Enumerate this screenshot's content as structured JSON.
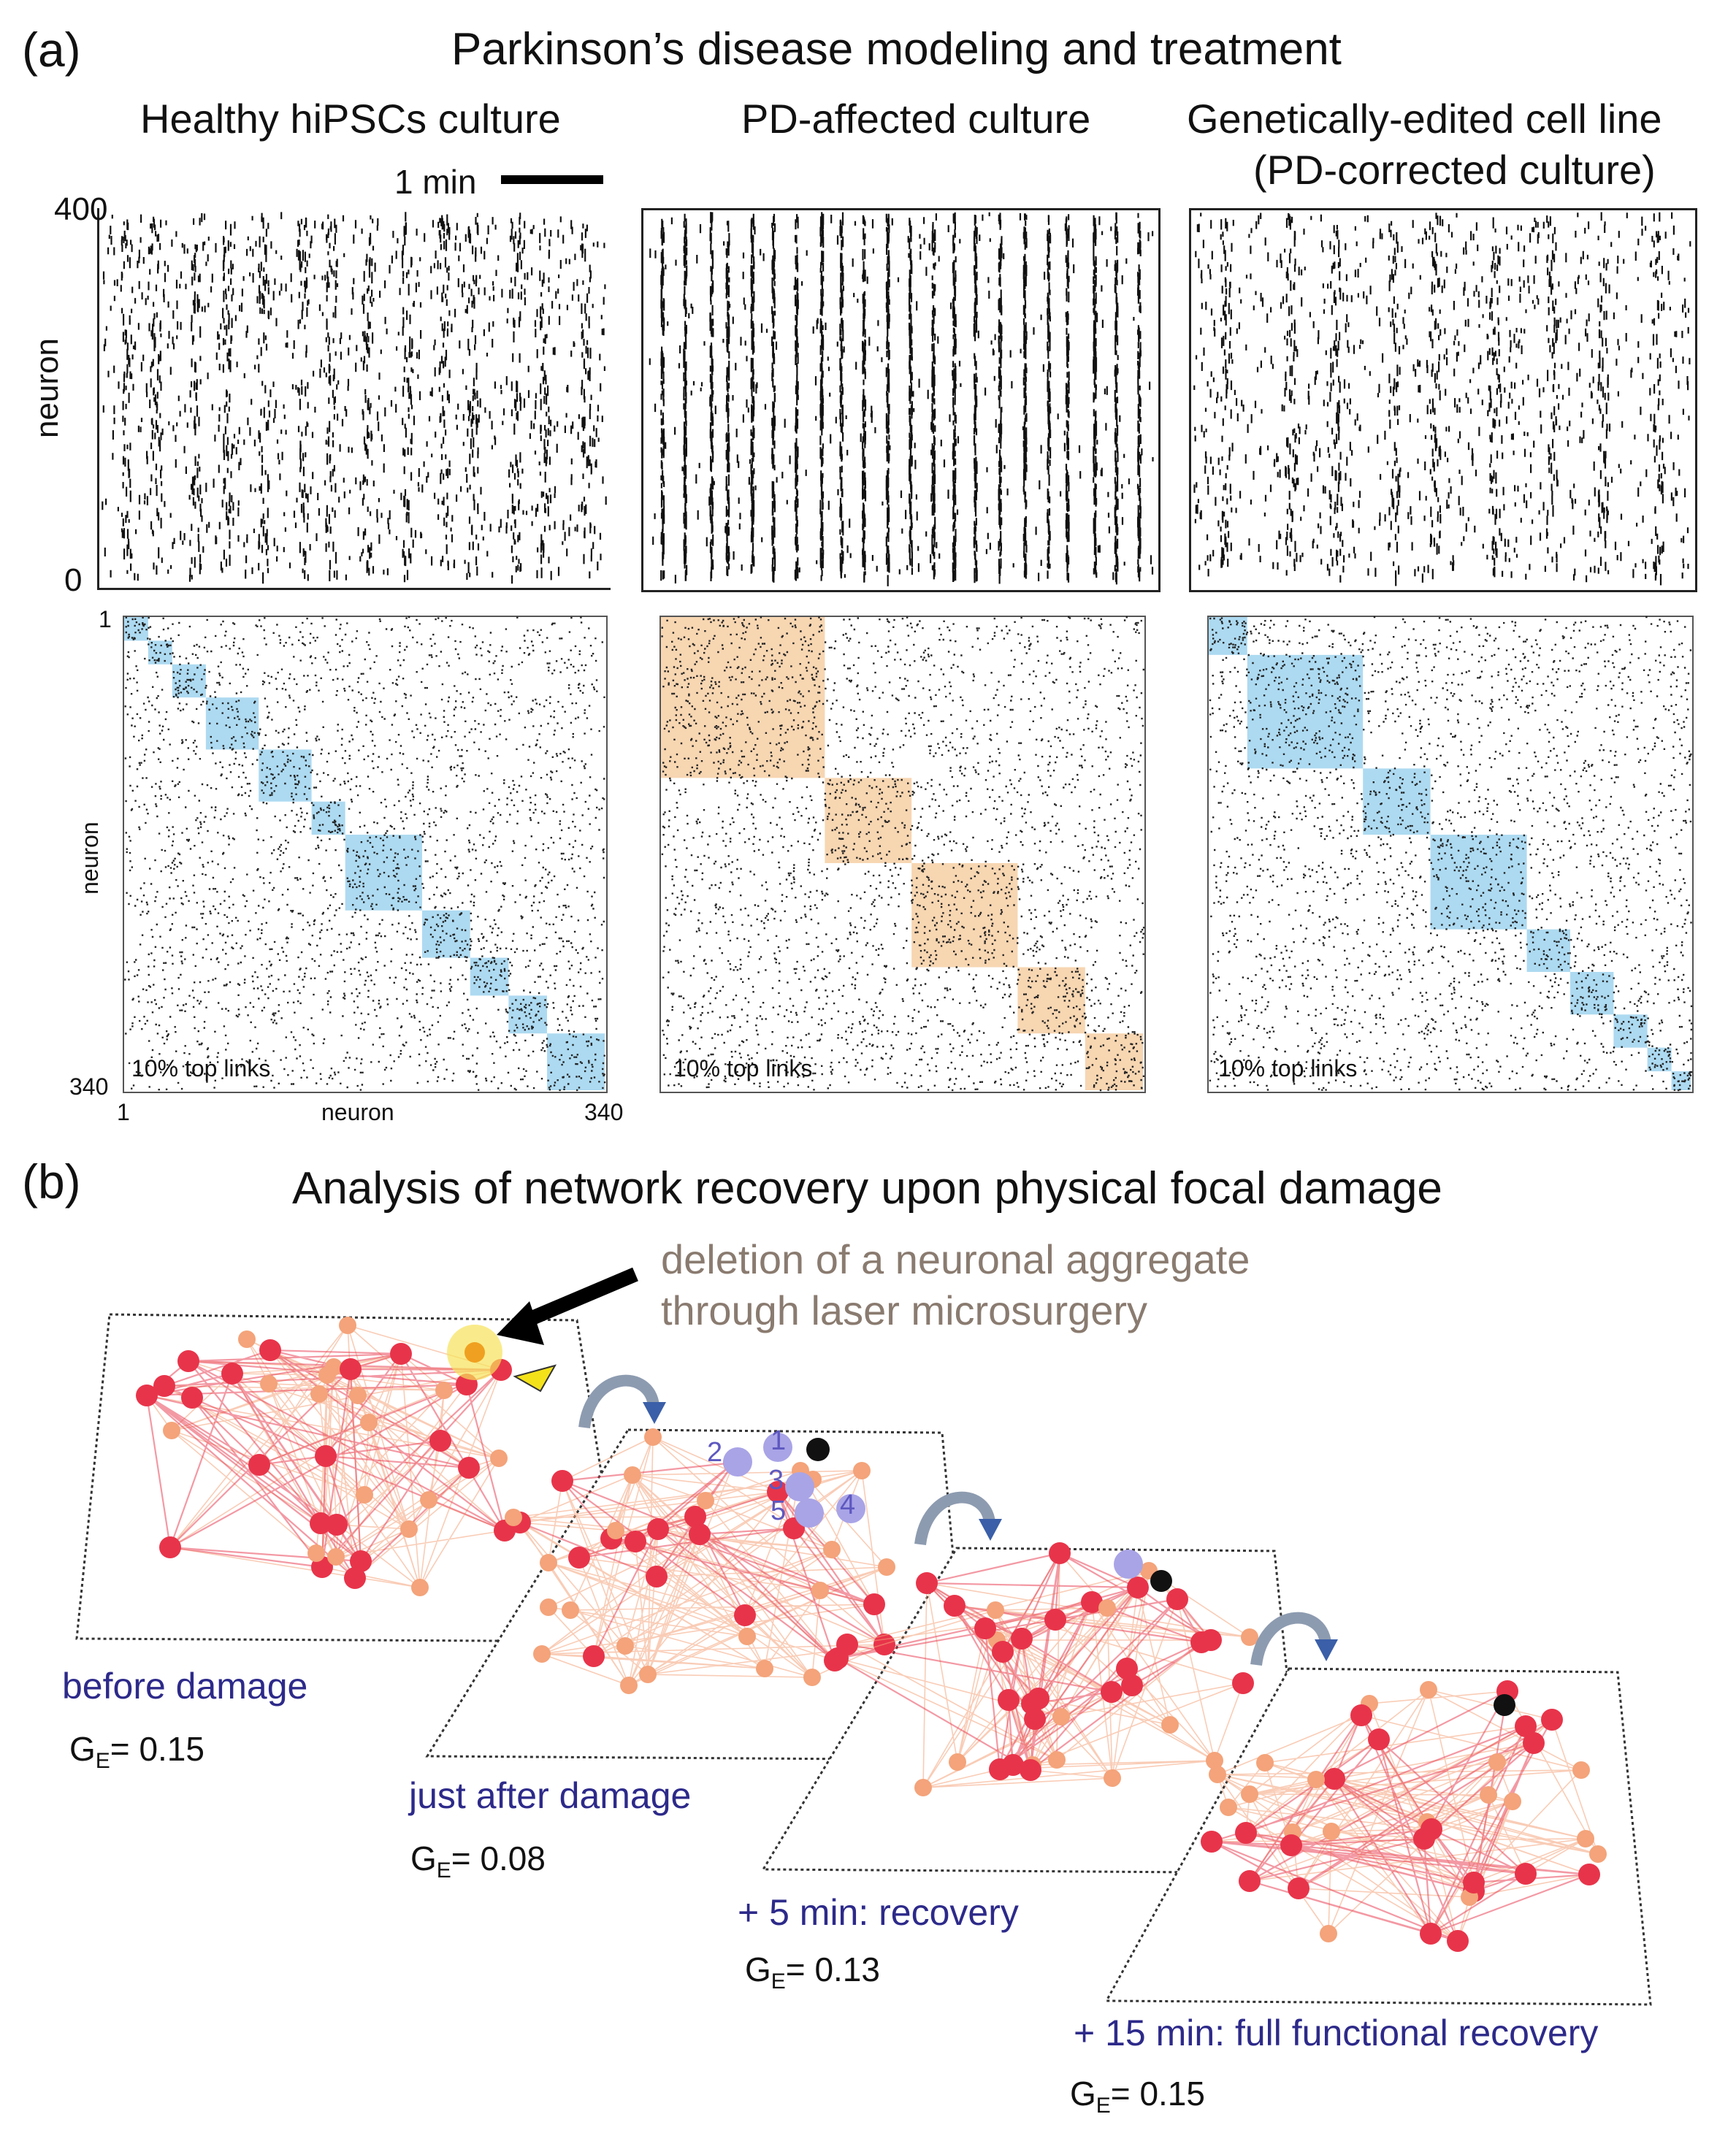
{
  "panel_a": {
    "letter": "(a)",
    "title": "Parkinson’s disease modeling and treatment",
    "scale_bar_label": "1 min",
    "raster_y_max": "400",
    "raster_y_min": "0",
    "raster_y_label": "neuron",
    "matrix_y_top": "1",
    "matrix_y_bottom": "340",
    "matrix_y_label": "neuron",
    "matrix_x_left": "1",
    "matrix_x_right": "340",
    "matrix_x_label": "neuron",
    "columns": [
      {
        "title": "Healthy hiPSCs culture",
        "title_line2": "",
        "matrix_note": "10% top links",
        "module_color": "#9fd3ee"
      },
      {
        "title": "PD-affected culture",
        "title_line2": "",
        "matrix_note": "10% top links",
        "module_color": "#f6cfa4"
      },
      {
        "title": "Genetically-edited cell line",
        "title_line2": "(PD-corrected culture)",
        "matrix_note": "10% top links",
        "module_color": "#9fd3ee"
      }
    ]
  },
  "panel_b": {
    "letter": "(b)",
    "title": "Analysis of network recovery upon physical focal damage",
    "annotation_line1": "deletion of a neuronal aggregate",
    "annotation_line2": "through laser microsurgery",
    "damaged_labels": [
      "1",
      "2",
      "3",
      "4",
      "5"
    ],
    "stages": [
      {
        "label": "before damage",
        "ge_symbol": "G",
        "ge_sub": "E",
        "ge_value": "= 0.15"
      },
      {
        "label": "just after damage",
        "ge_symbol": "G",
        "ge_sub": "E",
        "ge_value": "= 0.08"
      },
      {
        "label": "+ 5 min: recovery",
        "ge_symbol": "G",
        "ge_sub": "E",
        "ge_value": "= 0.13"
      },
      {
        "label": "+ 15 min: full functional recovery",
        "ge_symbol": "G",
        "ge_sub": "E",
        "ge_value": "= 0.15"
      }
    ],
    "colors": {
      "strong_node": "#e8344a",
      "weak_node": "#f4a37a",
      "damaged_node": "#a9a4e6",
      "arrow": "#8d9bb0",
      "highlight": "#f7e35a"
    }
  }
}
